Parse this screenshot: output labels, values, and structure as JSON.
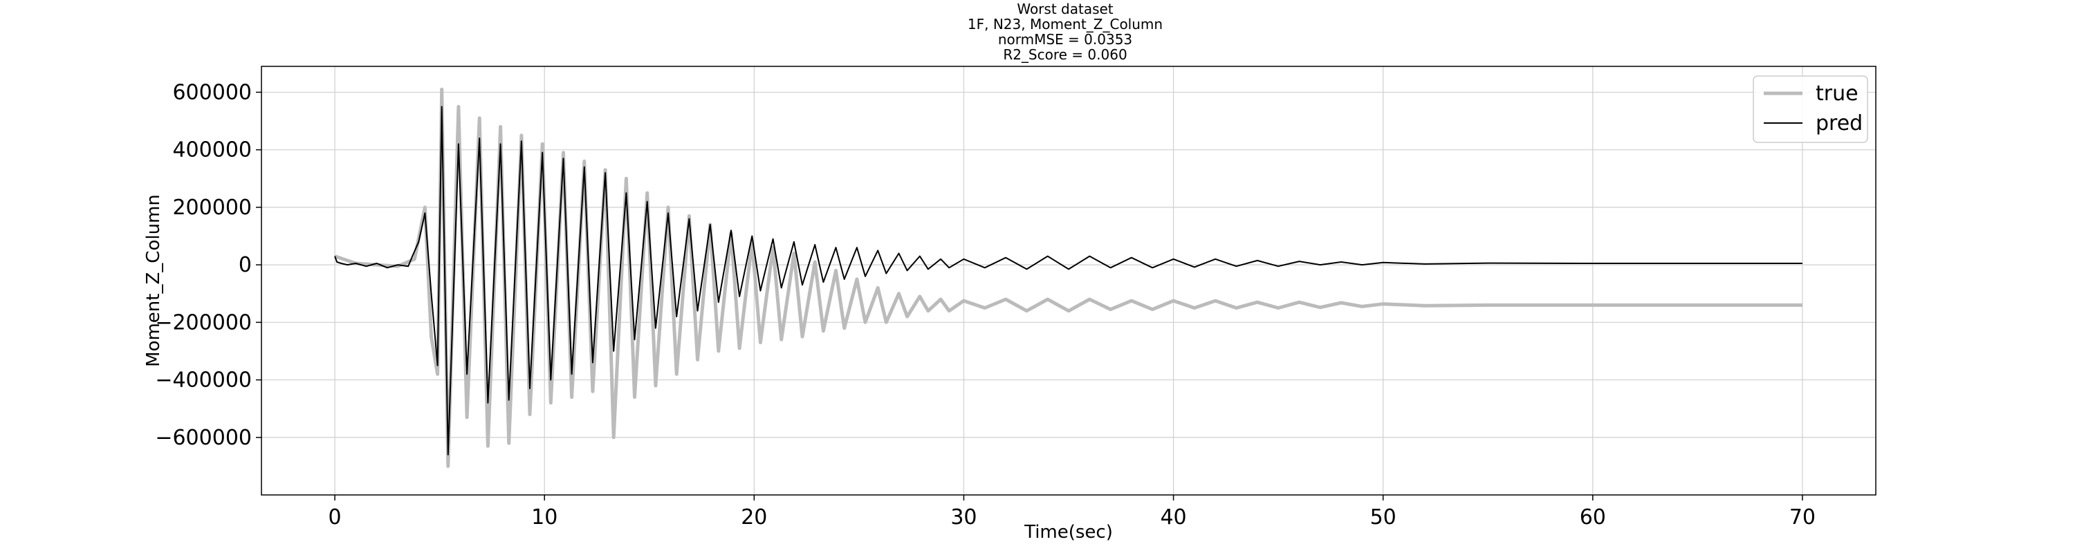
{
  "chart_data": {
    "type": "line",
    "title_lines": [
      "Worst dataset",
      "1F, N23, Moment_Z_Column",
      "normMSE = 0.0353",
      "R2_Score = 0.060"
    ],
    "xlabel": "Time(sec)",
    "ylabel": "Moment_Z_Column",
    "xlim": [
      -3.5,
      73.5
    ],
    "ylim": [
      -800000,
      690000
    ],
    "xticks": [
      0,
      10,
      20,
      30,
      40,
      50,
      60,
      70
    ],
    "xtick_labels": [
      "0",
      "10",
      "20",
      "30",
      "40",
      "50",
      "60",
      "70"
    ],
    "yticks": [
      600000,
      400000,
      200000,
      0,
      -200000,
      -400000,
      -600000
    ],
    "ytick_labels": [
      "600000",
      "400000",
      "200000",
      "0",
      "−200000",
      "−400000",
      "−600000"
    ],
    "grid": true,
    "legend": {
      "position": "top-right",
      "entries": [
        "true",
        "pred"
      ]
    },
    "series": [
      {
        "name": "true",
        "color": "#bbbbbb",
        "points": [
          [
            0,
            30000
          ],
          [
            1,
            5000
          ],
          [
            2,
            0
          ],
          [
            3,
            -5000
          ],
          [
            3.8,
            20000
          ],
          [
            4.3,
            200000
          ],
          [
            4.6,
            -250000
          ],
          [
            4.9,
            -380000
          ],
          [
            5.1,
            610000
          ],
          [
            5.4,
            -700000
          ],
          [
            5.9,
            550000
          ],
          [
            6.3,
            -530000
          ],
          [
            6.9,
            510000
          ],
          [
            7.3,
            -630000
          ],
          [
            7.9,
            480000
          ],
          [
            8.3,
            -620000
          ],
          [
            8.9,
            450000
          ],
          [
            9.3,
            -520000
          ],
          [
            9.9,
            420000
          ],
          [
            10.3,
            -480000
          ],
          [
            10.9,
            390000
          ],
          [
            11.3,
            -460000
          ],
          [
            11.9,
            360000
          ],
          [
            12.3,
            -440000
          ],
          [
            12.9,
            330000
          ],
          [
            13.3,
            -600000
          ],
          [
            13.9,
            300000
          ],
          [
            14.3,
            -460000
          ],
          [
            14.9,
            250000
          ],
          [
            15.3,
            -420000
          ],
          [
            15.9,
            200000
          ],
          [
            16.3,
            -380000
          ],
          [
            16.9,
            170000
          ],
          [
            17.3,
            -330000
          ],
          [
            17.9,
            140000
          ],
          [
            18.3,
            -300000
          ],
          [
            18.9,
            110000
          ],
          [
            19.3,
            -290000
          ],
          [
            19.9,
            80000
          ],
          [
            20.3,
            -270000
          ],
          [
            20.9,
            60000
          ],
          [
            21.3,
            -260000
          ],
          [
            21.9,
            40000
          ],
          [
            22.3,
            -250000
          ],
          [
            22.9,
            10000
          ],
          [
            23.3,
            -230000
          ],
          [
            23.9,
            -20000
          ],
          [
            24.3,
            -220000
          ],
          [
            24.9,
            -50000
          ],
          [
            25.3,
            -200000
          ],
          [
            25.9,
            -80000
          ],
          [
            26.3,
            -200000
          ],
          [
            26.9,
            -100000
          ],
          [
            27.3,
            -180000
          ],
          [
            27.9,
            -110000
          ],
          [
            28.3,
            -160000
          ],
          [
            28.9,
            -120000
          ],
          [
            29.3,
            -160000
          ],
          [
            30,
            -125000
          ],
          [
            31,
            -150000
          ],
          [
            32,
            -120000
          ],
          [
            33,
            -160000
          ],
          [
            34,
            -120000
          ],
          [
            35,
            -160000
          ],
          [
            36,
            -120000
          ],
          [
            37,
            -155000
          ],
          [
            38,
            -125000
          ],
          [
            39,
            -155000
          ],
          [
            40,
            -125000
          ],
          [
            41,
            -150000
          ],
          [
            42,
            -125000
          ],
          [
            43,
            -150000
          ],
          [
            44,
            -130000
          ],
          [
            45,
            -150000
          ],
          [
            46,
            -130000
          ],
          [
            47,
            -148000
          ],
          [
            48,
            -132000
          ],
          [
            49,
            -145000
          ],
          [
            50,
            -136000
          ],
          [
            52,
            -142000
          ],
          [
            55,
            -140000
          ],
          [
            60,
            -140000
          ],
          [
            65,
            -140000
          ],
          [
            70,
            -140000
          ]
        ]
      },
      {
        "name": "pred",
        "color": "#000000",
        "points": [
          [
            0,
            30000
          ],
          [
            0.1,
            10000
          ],
          [
            0.3,
            5000
          ],
          [
            0.6,
            0
          ],
          [
            1,
            5000
          ],
          [
            1.5,
            -5000
          ],
          [
            2,
            5000
          ],
          [
            2.5,
            -10000
          ],
          [
            3,
            0
          ],
          [
            3.5,
            -5000
          ],
          [
            3.7,
            30000
          ],
          [
            4,
            80000
          ],
          [
            4.3,
            180000
          ],
          [
            4.6,
            -100000
          ],
          [
            4.9,
            -350000
          ],
          [
            5.1,
            550000
          ],
          [
            5.4,
            -660000
          ],
          [
            5.9,
            420000
          ],
          [
            6.3,
            -380000
          ],
          [
            6.9,
            440000
          ],
          [
            7.3,
            -480000
          ],
          [
            7.9,
            420000
          ],
          [
            8.3,
            -470000
          ],
          [
            8.9,
            430000
          ],
          [
            9.3,
            -430000
          ],
          [
            9.9,
            390000
          ],
          [
            10.3,
            -400000
          ],
          [
            10.9,
            370000
          ],
          [
            11.3,
            -380000
          ],
          [
            11.9,
            340000
          ],
          [
            12.3,
            -340000
          ],
          [
            12.9,
            320000
          ],
          [
            13.3,
            -300000
          ],
          [
            13.9,
            250000
          ],
          [
            14.3,
            -260000
          ],
          [
            14.9,
            220000
          ],
          [
            15.3,
            -220000
          ],
          [
            15.9,
            180000
          ],
          [
            16.3,
            -180000
          ],
          [
            16.9,
            160000
          ],
          [
            17.3,
            -160000
          ],
          [
            17.9,
            140000
          ],
          [
            18.3,
            -130000
          ],
          [
            18.9,
            120000
          ],
          [
            19.3,
            -110000
          ],
          [
            19.9,
            100000
          ],
          [
            20.3,
            -90000
          ],
          [
            20.9,
            90000
          ],
          [
            21.3,
            -80000
          ],
          [
            21.9,
            80000
          ],
          [
            22.3,
            -70000
          ],
          [
            22.9,
            70000
          ],
          [
            23.3,
            -60000
          ],
          [
            23.9,
            60000
          ],
          [
            24.3,
            -50000
          ],
          [
            24.9,
            60000
          ],
          [
            25.3,
            -40000
          ],
          [
            25.9,
            50000
          ],
          [
            26.3,
            -30000
          ],
          [
            26.9,
            40000
          ],
          [
            27.3,
            -20000
          ],
          [
            27.9,
            30000
          ],
          [
            28.3,
            -15000
          ],
          [
            28.9,
            20000
          ],
          [
            29.3,
            -10000
          ],
          [
            30,
            20000
          ],
          [
            31,
            -10000
          ],
          [
            32,
            25000
          ],
          [
            33,
            -15000
          ],
          [
            34,
            30000
          ],
          [
            35,
            -15000
          ],
          [
            36,
            30000
          ],
          [
            37,
            -10000
          ],
          [
            38,
            25000
          ],
          [
            39,
            -10000
          ],
          [
            40,
            20000
          ],
          [
            41,
            -8000
          ],
          [
            42,
            20000
          ],
          [
            43,
            -5000
          ],
          [
            44,
            15000
          ],
          [
            45,
            -5000
          ],
          [
            46,
            12000
          ],
          [
            47,
            0
          ],
          [
            48,
            10000
          ],
          [
            49,
            0
          ],
          [
            50,
            8000
          ],
          [
            52,
            3000
          ],
          [
            55,
            6000
          ],
          [
            60,
            5000
          ],
          [
            65,
            5000
          ],
          [
            70,
            5000
          ]
        ]
      }
    ]
  }
}
